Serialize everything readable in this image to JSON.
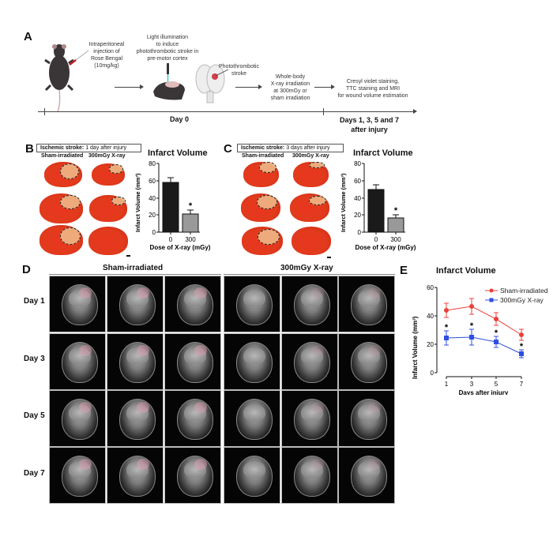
{
  "panels": {
    "A": {
      "letter": "A",
      "step1": "Intraperitoneal injection of Rose Bengal (10mg/kg)",
      "step1_lines": [
        "Intraperitoneal",
        "injection of",
        "Rose Bengal",
        "(10mg/kg)"
      ],
      "step2_lines": [
        "Light illumination",
        "to induce",
        "photothrombotic stroke in",
        "pre-motor cortex"
      ],
      "step3_lines": [
        "Photothrombotic",
        "stroke"
      ],
      "step4_lines": [
        "Whole-body",
        "X-ray irradiation",
        "at 300mGy or",
        "sham irradiation"
      ],
      "step5_lines": [
        "Cresyl violet staining,",
        "TTC staining and MRI",
        "for wound volume estimation"
      ],
      "timeline_day0": "Day 0",
      "timeline_after": [
        "Days 1, 3, 5 and 7",
        "after injury"
      ]
    },
    "B": {
      "letter": "B",
      "header_bold": "Ischemic stroke:",
      "header_rest": " 1 day after injury",
      "col1": "Sham-irradiated",
      "col2": "300mGy X-ray"
    },
    "C": {
      "letter": "C",
      "header_bold": "Ischemic stroke:",
      "header_rest": " 3 days after injury",
      "col1": "Sham-irradiated",
      "col2": "300mGy X-ray"
    },
    "D": {
      "letter": "D",
      "group1": "Sham-irradiated",
      "group2": "300mGy X-ray",
      "rows": [
        "Day 1",
        "Day 3",
        "Day 5",
        "Day 7"
      ]
    },
    "E": {
      "letter": "E"
    }
  },
  "chart_data": [
    {
      "id": "B",
      "type": "bar",
      "title": "Infarct Volume",
      "xlabel": "Dose of X-ray (mGy)",
      "ylabel": "Infarct Volume (mm³)",
      "categories": [
        "0",
        "300"
      ],
      "values": [
        58,
        21
      ],
      "errors": [
        5,
        4
      ],
      "colors": [
        "#1a1a1a",
        "#999999"
      ],
      "significance": [
        "",
        "*"
      ],
      "ylim": [
        0,
        80
      ],
      "yticks": [
        0,
        20,
        40,
        60,
        80
      ]
    },
    {
      "id": "C",
      "type": "bar",
      "title": "Infarct Volume",
      "xlabel": "Dose of X-ray (mGy)",
      "ylabel": "Infarct Volume (mm³)",
      "categories": [
        "0",
        "300"
      ],
      "values": [
        50,
        17
      ],
      "errors": [
        5,
        3
      ],
      "colors": [
        "#1a1a1a",
        "#999999"
      ],
      "significance": [
        "",
        "*"
      ],
      "ylim": [
        0,
        80
      ],
      "yticks": [
        0,
        20,
        40,
        60,
        80
      ]
    },
    {
      "id": "E",
      "type": "line",
      "title": "Infarct Volume",
      "xlabel": "Days after injury",
      "ylabel": "Infarct Volume (mm³)",
      "x": [
        1,
        3,
        5,
        7
      ],
      "series": [
        {
          "name": "Sham-irradiated",
          "color": "#e8413a",
          "marker": "circle",
          "values": [
            44,
            46.5,
            37.5,
            26.5
          ],
          "errors": [
            5,
            5.5,
            4.5,
            4
          ]
        },
        {
          "name": "300mGy X-ray",
          "color": "#2f4fe0",
          "marker": "square",
          "values": [
            24.5,
            25,
            21.5,
            13.5
          ],
          "errors": [
            5,
            5.5,
            4,
            3
          ]
        }
      ],
      "significance": [
        "*",
        "*",
        "*",
        "*"
      ],
      "ylim": [
        0,
        60
      ],
      "yticks": [
        0,
        20,
        40,
        60
      ],
      "xticks": [
        1,
        3,
        5,
        7
      ],
      "legend_position": "upper right"
    }
  ]
}
